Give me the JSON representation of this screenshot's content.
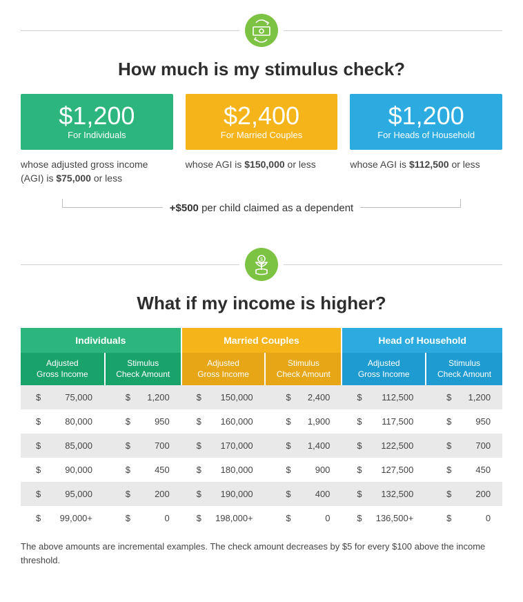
{
  "colors": {
    "green": "#2cb67d",
    "greenDark": "#1aa26b",
    "orange": "#f4b41a",
    "orangeDark": "#e6a615",
    "blue": "#2cabe1",
    "blueDark": "#1e9bd1",
    "iconBg": "#7cc243",
    "rowOdd": "#e9e9e9",
    "rowEven": "#ffffff"
  },
  "section1": {
    "title": "How much is my stimulus check?",
    "cards": [
      {
        "amount": "$1,200",
        "label": "For Individuals",
        "desc_pre": "whose adjusted gross income (AGI) is ",
        "desc_bold": "$75,000",
        "desc_post": " or less",
        "color": "#2cb67d"
      },
      {
        "amount": "$2,400",
        "label": "For Married Couples",
        "desc_pre": "whose AGI is ",
        "desc_bold": "$150,000",
        "desc_post": " or less",
        "color": "#f4b41a"
      },
      {
        "amount": "$1,200",
        "label": "For Heads of Household",
        "desc_pre": "whose AGI is ",
        "desc_bold": "$112,500",
        "desc_post": " or less",
        "color": "#2cabe1"
      }
    ],
    "child_bonus_bold": "+$500",
    "child_bonus_rest": " per child claimed as a dependent"
  },
  "section2": {
    "title": "What if my income is higher?",
    "groups": [
      {
        "label": "Individuals",
        "bg": "#2cb67d",
        "bg2": "#1aa26b"
      },
      {
        "label": "Married Couples",
        "bg": "#f4b41a",
        "bg2": "#e6a615"
      },
      {
        "label": "Head of Household",
        "bg": "#2cabe1",
        "bg2": "#1e9bd1"
      }
    ],
    "subheaders": [
      "Adjusted Gross Income",
      "Stimulus Check Amount"
    ],
    "rows": [
      [
        [
          "$",
          "75,000"
        ],
        [
          "$",
          "1,200"
        ],
        [
          "$",
          "150,000"
        ],
        [
          "$",
          "2,400"
        ],
        [
          "$",
          "112,500"
        ],
        [
          "$",
          "1,200"
        ]
      ],
      [
        [
          "$",
          "80,000"
        ],
        [
          "$",
          "950"
        ],
        [
          "$",
          "160,000"
        ],
        [
          "$",
          "1,900"
        ],
        [
          "$",
          "117,500"
        ],
        [
          "$",
          "950"
        ]
      ],
      [
        [
          "$",
          "85,000"
        ],
        [
          "$",
          "700"
        ],
        [
          "$",
          "170,000"
        ],
        [
          "$",
          "1,400"
        ],
        [
          "$",
          "122,500"
        ],
        [
          "$",
          "700"
        ]
      ],
      [
        [
          "$",
          "90,000"
        ],
        [
          "$",
          "450"
        ],
        [
          "$",
          "180,000"
        ],
        [
          "$",
          "900"
        ],
        [
          "$",
          "127,500"
        ],
        [
          "$",
          "450"
        ]
      ],
      [
        [
          "$",
          "95,000"
        ],
        [
          "$",
          "200"
        ],
        [
          "$",
          "190,000"
        ],
        [
          "$",
          "400"
        ],
        [
          "$",
          "132,500"
        ],
        [
          "$",
          "200"
        ]
      ],
      [
        [
          "$",
          "99,000+"
        ],
        [
          "$",
          "0"
        ],
        [
          "$",
          "198,000+"
        ],
        [
          "$",
          "0"
        ],
        [
          "$",
          "136,500+"
        ],
        [
          "$",
          "0"
        ]
      ]
    ],
    "footnote": "The above amounts are incremental examples. The check amount decreases by $5 for every $100 above the income threshold."
  }
}
